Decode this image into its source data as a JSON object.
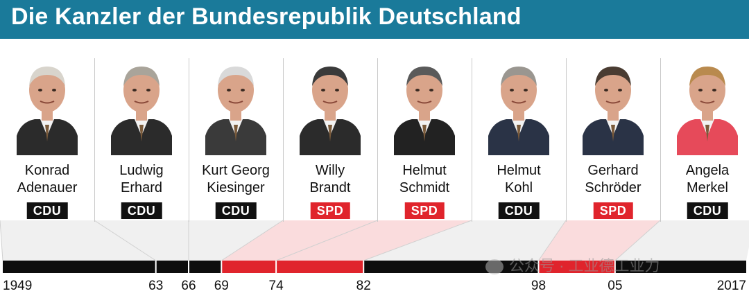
{
  "title": "Die Kanzler der Bundesrepublik Deutschland",
  "colors": {
    "header": "#1a7a9a",
    "cdu": "#111111",
    "spd": "#e0242c",
    "timeline_cdu": "#0d0d0d",
    "timeline_spd": "#e0242c"
  },
  "chancellors": [
    {
      "first": "Konrad",
      "last": "Adenauer",
      "party": "CDU",
      "from": 1949,
      "to": 1963,
      "suit": "#2b2b2b",
      "hair": "#d8d4cc"
    },
    {
      "first": "Ludwig",
      "last": "Erhard",
      "party": "CDU",
      "from": 1963,
      "to": 1966,
      "suit": "#2b2b2b",
      "hair": "#a9a49a"
    },
    {
      "first": "Kurt Georg",
      "last": "Kiesinger",
      "party": "CDU",
      "from": 1966,
      "to": 1969,
      "suit": "#3a3a3a",
      "hair": "#d9d9d9"
    },
    {
      "first": "Willy",
      "last": "Brandt",
      "party": "SPD",
      "from": 1969,
      "to": 1974,
      "suit": "#2b2b2b",
      "hair": "#3a3a3a"
    },
    {
      "first": "Helmut",
      "last": "Schmidt",
      "party": "SPD",
      "from": 1974,
      "to": 1982,
      "suit": "#222222",
      "hair": "#5a5a5a"
    },
    {
      "first": "Helmut",
      "last": "Kohl",
      "party": "CDU",
      "from": 1982,
      "to": 1998,
      "suit": "#2a3346",
      "hair": "#9a9690"
    },
    {
      "first": "Gerhard",
      "last": "Schröder",
      "party": "SPD",
      "from": 1998,
      "to": 2005,
      "suit": "#2a3346",
      "hair": "#4a3c32"
    },
    {
      "first": "Angela",
      "last": "Merkel",
      "party": "CDU",
      "from": 2005,
      "to": 2017,
      "suit": "#e64a5a",
      "hair": "#b98a4e"
    }
  ],
  "timeline": {
    "labels": [
      "1949",
      "63",
      "66",
      "69",
      "74",
      "82",
      "98",
      "05",
      "2017"
    ],
    "years": [
      1949,
      1963,
      1966,
      1969,
      1974,
      1982,
      1998,
      2005,
      2017
    ]
  },
  "watermark": {
    "text": "公众号 · 工业德工业力"
  }
}
